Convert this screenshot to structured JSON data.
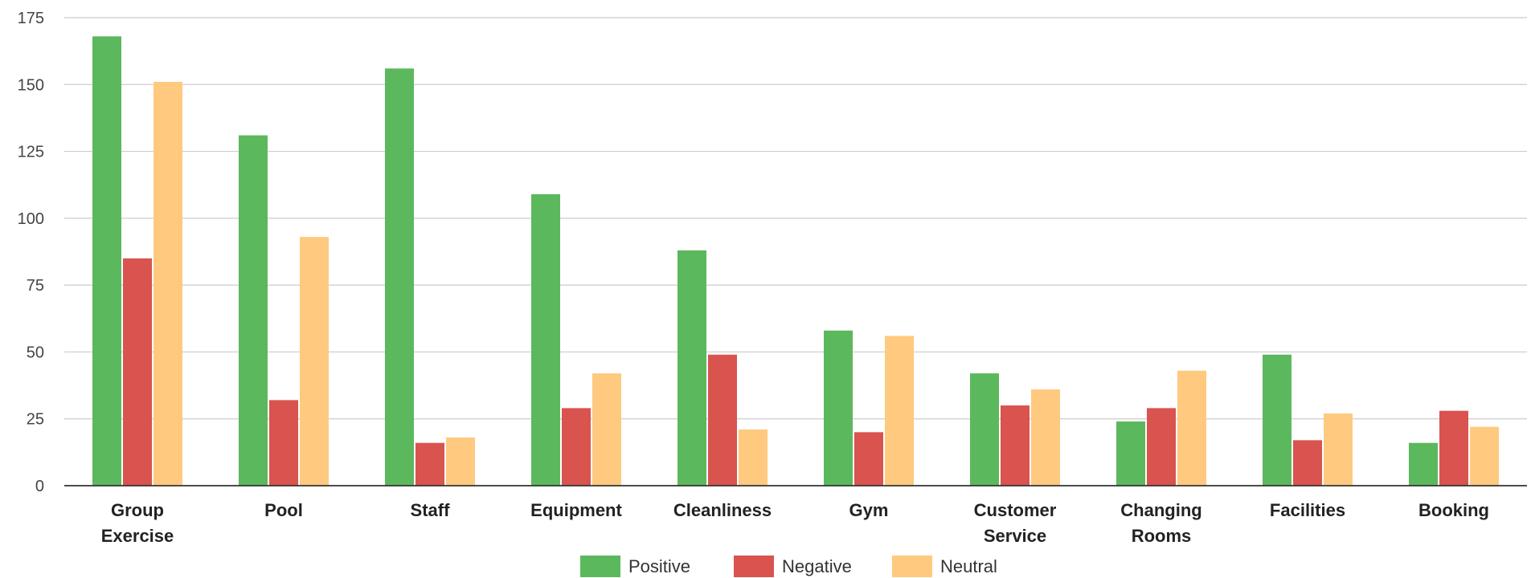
{
  "chart_data": {
    "type": "bar",
    "categories": [
      [
        "Group",
        "Exercise"
      ],
      [
        "Pool"
      ],
      [
        "Staff"
      ],
      [
        "Equipment"
      ],
      [
        "Cleanliness"
      ],
      [
        "Gym"
      ],
      [
        "Customer",
        "Service"
      ],
      [
        "Changing",
        "Rooms"
      ],
      [
        "Facilities"
      ],
      [
        "Booking"
      ]
    ],
    "series": [
      {
        "name": "Positive",
        "color": "#5cb85c",
        "values": [
          168,
          131,
          156,
          109,
          88,
          58,
          42,
          24,
          49,
          16
        ]
      },
      {
        "name": "Negative",
        "color": "#d9534f",
        "values": [
          85,
          32,
          16,
          29,
          49,
          20,
          30,
          29,
          17,
          28
        ]
      },
      {
        "name": "Neutral",
        "color": "#ffc97f",
        "values": [
          151,
          93,
          18,
          42,
          21,
          56,
          36,
          43,
          27,
          22
        ]
      }
    ],
    "ylim": [
      0,
      175
    ],
    "yticks": [
      "0",
      "25",
      "50",
      "75",
      "100",
      "125",
      "150",
      "175"
    ],
    "grid": true,
    "legend_position": "bottom",
    "title": "",
    "xlabel": "",
    "ylabel": ""
  }
}
